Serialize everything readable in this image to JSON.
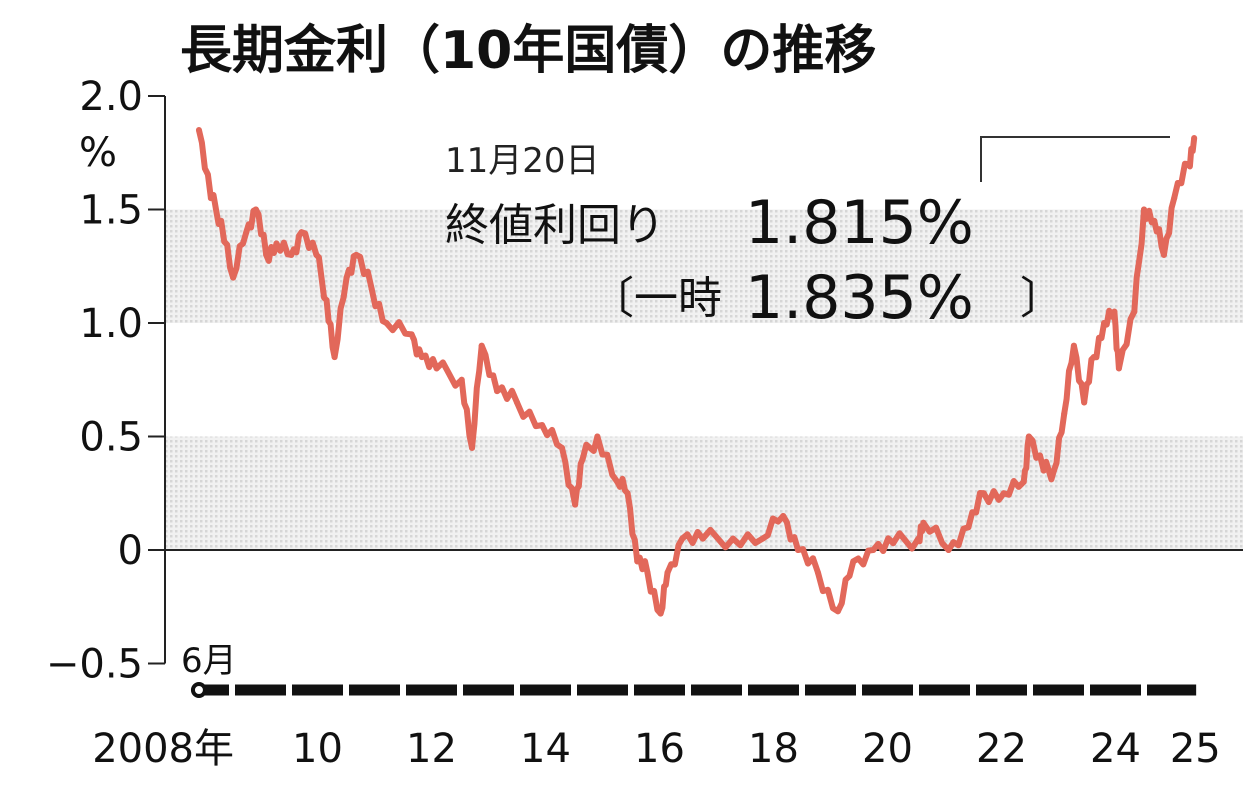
{
  "chart_data": {
    "type": "line",
    "title": "長期金利（10年国債）の推移",
    "ylabel": "%",
    "xlabel": "",
    "ylim": [
      -0.5,
      2.0
    ],
    "xlim": [
      2008.0,
      2026.0
    ],
    "yticks": [
      {
        "value": 2.0,
        "label": "2.0"
      },
      {
        "value": 1.5,
        "label": "1.5"
      },
      {
        "value": 1.0,
        "label": "1.0"
      },
      {
        "value": 0.5,
        "label": "0.5"
      },
      {
        "value": 0,
        "label": "0"
      },
      {
        "value": -0.5,
        "label": "−0.5"
      }
    ],
    "xticks": [
      {
        "value": 2008.5,
        "label": "2008年"
      },
      {
        "value": 2010.5,
        "label": "10"
      },
      {
        "value": 2012.5,
        "label": "12"
      },
      {
        "value": 2014.5,
        "label": "14"
      },
      {
        "value": 2016.5,
        "label": "16"
      },
      {
        "value": 2018.5,
        "label": "18"
      },
      {
        "value": 2020.5,
        "label": "20"
      },
      {
        "value": 2022.5,
        "label": "22"
      },
      {
        "value": 2024.5,
        "label": "24"
      },
      {
        "value": 2025.9,
        "label": "25"
      }
    ],
    "start_label": "6月",
    "shaded_bands": [
      [
        0,
        0.5
      ],
      [
        1.0,
        1.5
      ]
    ],
    "series": [
      {
        "name": "長期金利",
        "color": "#e2685a",
        "x": [
          2008.42,
          2008.63,
          2008.81,
          2009.02,
          2009.25,
          2009.42,
          2009.6,
          2009.78,
          2010.04,
          2010.22,
          2010.48,
          2010.66,
          2010.8,
          2011.01,
          2011.18,
          2011.45,
          2011.71,
          2012.15,
          2012.33,
          2012.59,
          2013.03,
          2013.21,
          2013.38,
          2013.65,
          2014.0,
          2014.44,
          2014.79,
          2015.02,
          2015.15,
          2015.41,
          2015.76,
          2015.94,
          2016.11,
          2016.29,
          2016.52,
          2016.64,
          2016.9,
          2017.26,
          2017.79,
          2018.31,
          2018.67,
          2018.93,
          2019.28,
          2019.63,
          2019.9,
          2020.25,
          2020.6,
          2021.04,
          2021.13,
          2021.57,
          2021.92,
          2022.19,
          2022.54,
          2022.89,
          2022.98,
          2023.24,
          2023.42,
          2023.6,
          2023.77,
          2023.95,
          2024.12,
          2024.3,
          2024.48,
          2024.56,
          2024.83,
          2025.0,
          2025.18,
          2025.35,
          2025.53,
          2025.78,
          2025.88
        ],
        "values": [
          1.85,
          1.55,
          1.45,
          1.2,
          1.4,
          1.5,
          1.3,
          1.35,
          1.3,
          1.4,
          1.3,
          1.1,
          0.85,
          1.2,
          1.3,
          1.15,
          1.0,
          0.95,
          0.85,
          0.8,
          0.75,
          0.45,
          0.9,
          0.7,
          0.65,
          0.55,
          0.45,
          0.2,
          0.4,
          0.5,
          0.3,
          0.25,
          -0.05,
          -0.1,
          -0.28,
          -0.1,
          0.05,
          0.05,
          0.05,
          0.05,
          0.15,
          0.0,
          -0.1,
          -0.27,
          -0.05,
          0.0,
          0.03,
          0.05,
          0.12,
          0.0,
          0.1,
          0.25,
          0.25,
          0.3,
          0.5,
          0.35,
          0.35,
          0.6,
          0.9,
          0.65,
          0.85,
          1.0,
          1.05,
          0.8,
          1.05,
          1.5,
          1.45,
          1.3,
          1.55,
          1.7,
          1.815
        ]
      }
    ],
    "annotation": {
      "date": "11月20日",
      "close_label": "終値利回り",
      "close_value": "1.815%",
      "intraday_open": "〔一時",
      "intraday_value": "1.835%",
      "intraday_close": "〕"
    }
  }
}
